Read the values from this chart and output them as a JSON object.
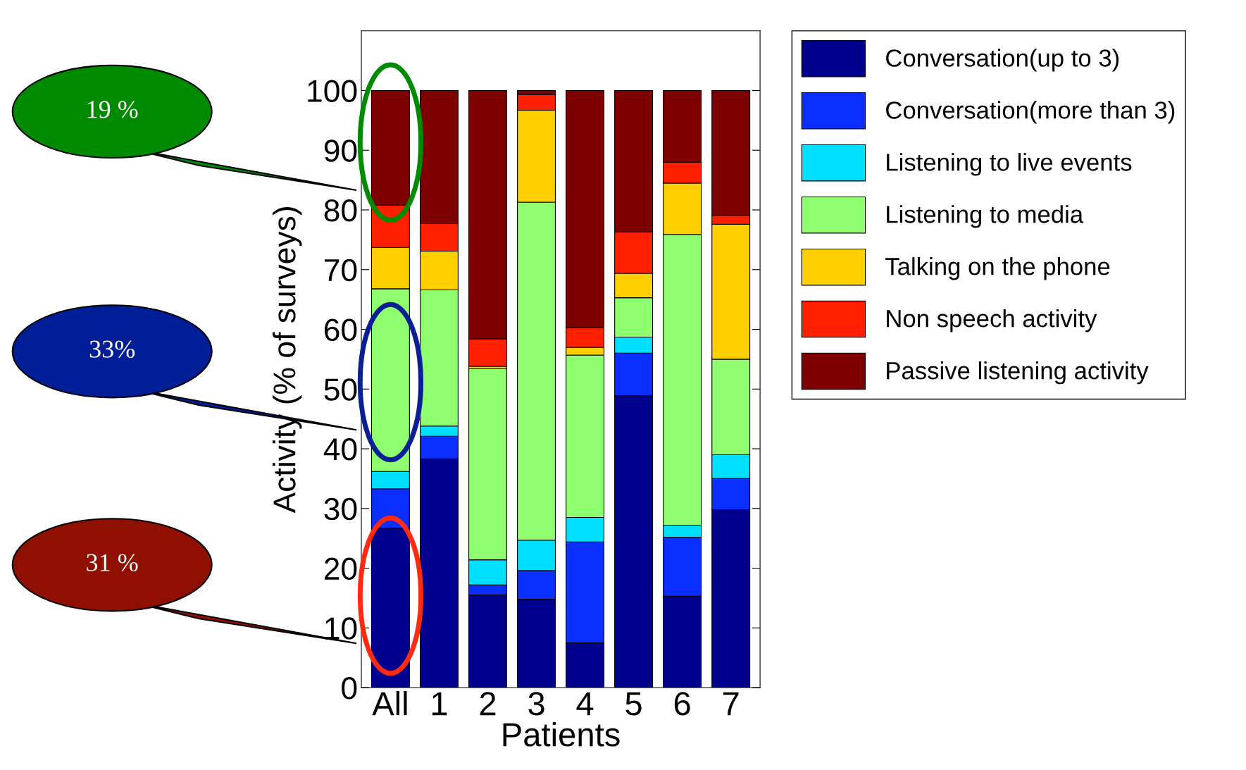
{
  "chart_data": {
    "type": "bar",
    "stacked": true,
    "xlabel": "Patients",
    "ylabel": "Activity (% of surveys)",
    "categories": [
      "All",
      "1",
      "2",
      "3",
      "4",
      "5",
      "6",
      "7"
    ],
    "series": [
      {
        "name": "Conversation(up to 3)",
        "color": "#00008f",
        "values": [
          26.7,
          38.3,
          15.5,
          14.8,
          7.5,
          48.9,
          15.3,
          29.8
        ]
      },
      {
        "name": "Conversation(more than 3)",
        "color": "#0a2eff",
        "values": [
          6.6,
          3.8,
          1.7,
          4.8,
          16.9,
          7.1,
          9.9,
          5.2
        ]
      },
      {
        "name": "Listening to live events",
        "color": "#00dfff",
        "values": [
          2.9,
          1.7,
          4.2,
          5.1,
          4.1,
          2.7,
          2.0,
          4.0
        ]
      },
      {
        "name": "Listening to media",
        "color": "#8fff6f",
        "values": [
          30.6,
          22.8,
          32.0,
          56.6,
          27.2,
          6.6,
          48.7,
          16.0
        ]
      },
      {
        "name": "Talking on the phone",
        "color": "#ffcf00",
        "values": [
          6.9,
          6.5,
          0.4,
          15.4,
          1.3,
          4.1,
          8.6,
          22.6
        ]
      },
      {
        "name": "Non speech activity",
        "color": "#ff2000",
        "values": [
          7.1,
          4.6,
          4.6,
          2.6,
          3.3,
          6.9,
          3.5,
          1.5
        ]
      },
      {
        "name": "Passive listening activity",
        "color": "#7f0000",
        "values": [
          19.2,
          22.3,
          41.6,
          0.7,
          39.7,
          23.7,
          12.0,
          20.9
        ]
      }
    ],
    "ylim": [
      0,
      110
    ],
    "yticks": [
      0,
      10,
      20,
      30,
      40,
      50,
      60,
      70,
      80,
      90,
      100
    ],
    "grid": false,
    "legend": "right",
    "annotations": [
      "19 %",
      "33%",
      "31 %"
    ]
  }
}
